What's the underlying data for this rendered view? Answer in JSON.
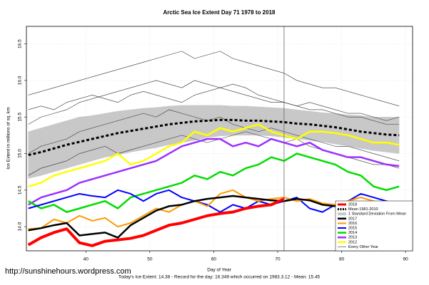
{
  "chart_data": {
    "type": "line",
    "title": "Arctic Sea Ice Extent Day 71 1978 to 2018",
    "x_label": "Day of Year",
    "y_label": "Ice Extent in millions of sq. km",
    "footer": "Today's Ice Extent: 14.38  - Record for the day: 16.349 which occurred on 1983.3.12  - Mean: 15.45",
    "watermark": "http://sunshinehours.wordpress.com",
    "xlim": [
      30.7,
      91.1
    ],
    "ylim": [
      13.67,
      16.74
    ],
    "xticks": [
      40,
      50,
      60,
      70,
      80,
      90
    ],
    "yticks": [
      {
        "value": 14,
        "label": "14.0"
      },
      {
        "value": 14.5,
        "label": "14.5"
      },
      {
        "value": 15,
        "label": "15.0"
      },
      {
        "value": 15.5,
        "label": "15.5"
      },
      {
        "value": 16,
        "label": "16.0"
      },
      {
        "value": 16.5,
        "label": "16.5"
      }
    ],
    "grid": true,
    "vline": 71,
    "legend": "bottomright",
    "x": [
      31,
      33,
      35,
      37,
      39,
      41,
      43,
      45,
      47,
      49,
      51,
      53,
      55,
      57,
      59,
      61,
      63,
      65,
      67,
      69,
      71,
      73,
      75,
      77,
      79,
      81,
      83,
      85,
      87,
      89
    ],
    "band": {
      "name": "1 Standard Deviation From Mean",
      "color": "#c8c8c8",
      "upper": [
        15.3,
        15.35,
        15.4,
        15.45,
        15.5,
        15.52,
        15.55,
        15.58,
        15.6,
        15.62,
        15.63,
        15.65,
        15.66,
        15.66,
        15.66,
        15.66,
        15.65,
        15.65,
        15.64,
        15.63,
        15.62,
        15.6,
        15.58,
        15.56,
        15.55,
        15.53,
        15.52,
        15.5,
        15.5,
        15.5
      ],
      "lower": [
        14.66,
        14.7,
        14.75,
        14.8,
        14.85,
        14.9,
        14.95,
        14.98,
        15.02,
        15.05,
        15.08,
        15.12,
        15.15,
        15.18,
        15.22,
        15.24,
        15.25,
        15.25,
        15.25,
        15.24,
        15.22,
        15.2,
        15.18,
        15.16,
        15.13,
        15.1,
        15.07,
        15.04,
        15.02,
        15.0
      ]
    },
    "other_years": {
      "name": "Every Other Year",
      "color": "#333333",
      "values": [
        [
          15.8,
          15.85,
          15.9,
          15.95,
          16.0,
          16.05,
          16.1,
          16.15,
          16.2,
          16.25,
          16.3,
          16.35,
          16.4,
          16.3,
          16.35,
          16.4,
          16.3,
          16.25,
          16.2,
          16.15,
          16.1,
          16.0,
          15.95,
          15.9,
          15.9,
          15.85,
          15.8,
          15.75,
          15.7,
          15.65
        ],
        [
          15.4,
          15.5,
          15.55,
          15.6,
          15.7,
          15.75,
          15.8,
          15.85,
          15.9,
          15.95,
          16.0,
          15.95,
          15.9,
          16.0,
          15.95,
          15.9,
          15.85,
          15.8,
          15.75,
          15.7,
          15.7,
          15.65,
          15.6,
          15.6,
          15.55,
          15.5,
          15.5,
          15.45,
          15.4,
          15.4
        ],
        [
          15.0,
          15.1,
          15.15,
          15.2,
          15.3,
          15.35,
          15.4,
          15.45,
          15.5,
          15.55,
          15.5,
          15.6,
          15.55,
          15.5,
          15.45,
          15.5,
          15.4,
          15.35,
          15.3,
          15.35,
          15.3,
          15.25,
          15.2,
          15.15,
          15.1,
          15.1,
          15.05,
          15.0,
          14.95,
          14.9
        ],
        [
          14.7,
          14.8,
          14.85,
          14.9,
          15.0,
          15.05,
          15.1,
          15.0,
          15.05,
          15.1,
          15.15,
          15.2,
          15.25,
          15.2,
          15.15,
          15.2,
          15.25,
          15.3,
          15.25,
          15.2,
          15.15,
          15.2,
          15.1,
          15.05,
          15.0,
          14.95,
          14.9,
          14.85,
          14.85,
          14.8
        ],
        [
          15.6,
          15.65,
          15.6,
          15.7,
          15.75,
          15.8,
          15.75,
          15.7,
          15.8,
          15.85,
          15.8,
          15.75,
          15.7,
          15.8,
          15.85,
          15.9,
          15.95,
          15.9,
          15.8,
          15.75,
          15.7,
          15.65,
          15.7,
          15.65,
          15.6,
          15.55,
          15.55,
          15.5,
          15.45,
          15.5
        ]
      ]
    },
    "series": [
      {
        "name": "2018",
        "color": "#ff0000",
        "width": 4,
        "values": [
          13.75,
          13.85,
          13.92,
          13.97,
          13.78,
          13.74,
          13.8,
          13.82,
          13.84,
          13.88,
          13.95,
          14.02,
          14.05,
          14.1,
          14.15,
          14.18,
          14.2,
          14.25,
          14.28,
          14.3,
          14.38,
          null,
          null,
          null,
          null,
          null,
          null,
          null,
          null,
          null
        ]
      },
      {
        "name": "Mean 1981-2010",
        "color": "#000000",
        "width": 3,
        "dashed": true,
        "values": [
          14.98,
          15.02,
          15.07,
          15.12,
          15.16,
          15.2,
          15.24,
          15.28,
          15.31,
          15.34,
          15.37,
          15.4,
          15.42,
          15.44,
          15.45,
          15.46,
          15.46,
          15.45,
          15.45,
          15.44,
          15.43,
          15.41,
          15.4,
          15.38,
          15.36,
          15.33,
          15.3,
          15.28,
          15.26,
          15.25
        ]
      },
      {
        "name": "2017",
        "color": "#000000",
        "width": 2.5,
        "values": [
          13.95,
          13.98,
          14.02,
          14.05,
          13.88,
          13.9,
          13.92,
          13.85,
          14.02,
          14.12,
          14.22,
          14.28,
          14.3,
          14.35,
          14.38,
          14.4,
          14.42,
          14.4,
          14.38,
          14.36,
          14.35,
          14.38,
          14.36,
          14.3,
          14.28,
          14.25,
          14.22,
          14.2,
          14.18,
          14.17
        ]
      },
      {
        "name": "2016",
        "color": "#ff9900",
        "width": 2,
        "values": [
          13.97,
          13.98,
          14.1,
          14.05,
          14.15,
          14.08,
          14.12,
          14.0,
          14.05,
          14.15,
          14.25,
          14.2,
          14.3,
          14.35,
          14.28,
          14.45,
          14.5,
          14.4,
          14.35,
          14.38,
          14.4,
          14.35,
          14.38,
          14.32,
          14.3,
          14.35,
          14.4,
          14.35,
          14.3,
          14.2
        ]
      },
      {
        "name": "2015",
        "color": "#0000ff",
        "width": 2,
        "values": [
          14.25,
          14.3,
          14.35,
          14.4,
          14.45,
          14.42,
          14.4,
          14.5,
          14.45,
          14.35,
          14.45,
          14.5,
          14.4,
          14.35,
          14.3,
          14.2,
          14.3,
          14.25,
          14.35,
          14.3,
          14.35,
          14.4,
          14.25,
          14.2,
          14.3,
          14.35,
          14.45,
          14.4,
          14.35,
          14.3
        ]
      },
      {
        "name": "2014",
        "color": "#00dd00",
        "width": 2.5,
        "values": [
          14.35,
          14.25,
          14.3,
          14.2,
          14.25,
          14.3,
          14.35,
          14.25,
          14.4,
          14.45,
          14.5,
          14.55,
          14.6,
          14.7,
          14.65,
          14.75,
          14.7,
          14.8,
          14.85,
          14.95,
          14.9,
          15.0,
          14.95,
          14.9,
          14.85,
          14.75,
          14.7,
          14.55,
          14.5,
          14.55
        ]
      },
      {
        "name": "2013",
        "color": "#9b30ff",
        "width": 2.5,
        "values": [
          14.3,
          14.4,
          14.45,
          14.5,
          14.6,
          14.65,
          14.7,
          14.75,
          14.8,
          14.85,
          14.9,
          15.0,
          15.1,
          15.15,
          15.2,
          15.2,
          15.1,
          15.15,
          15.1,
          15.2,
          15.15,
          15.1,
          15.15,
          15.05,
          15.0,
          14.95,
          14.95,
          14.9,
          14.85,
          14.83
        ]
      },
      {
        "name": "2012",
        "color": "#ffff00",
        "width": 2.5,
        "values": [
          14.55,
          14.6,
          14.7,
          14.75,
          14.8,
          14.85,
          14.9,
          15.0,
          14.85,
          14.9,
          15.0,
          15.1,
          15.15,
          15.3,
          15.25,
          15.35,
          15.3,
          15.35,
          15.4,
          15.3,
          15.25,
          15.2,
          15.3,
          15.3,
          15.28,
          15.25,
          15.2,
          15.15,
          15.15,
          15.12
        ]
      }
    ]
  }
}
